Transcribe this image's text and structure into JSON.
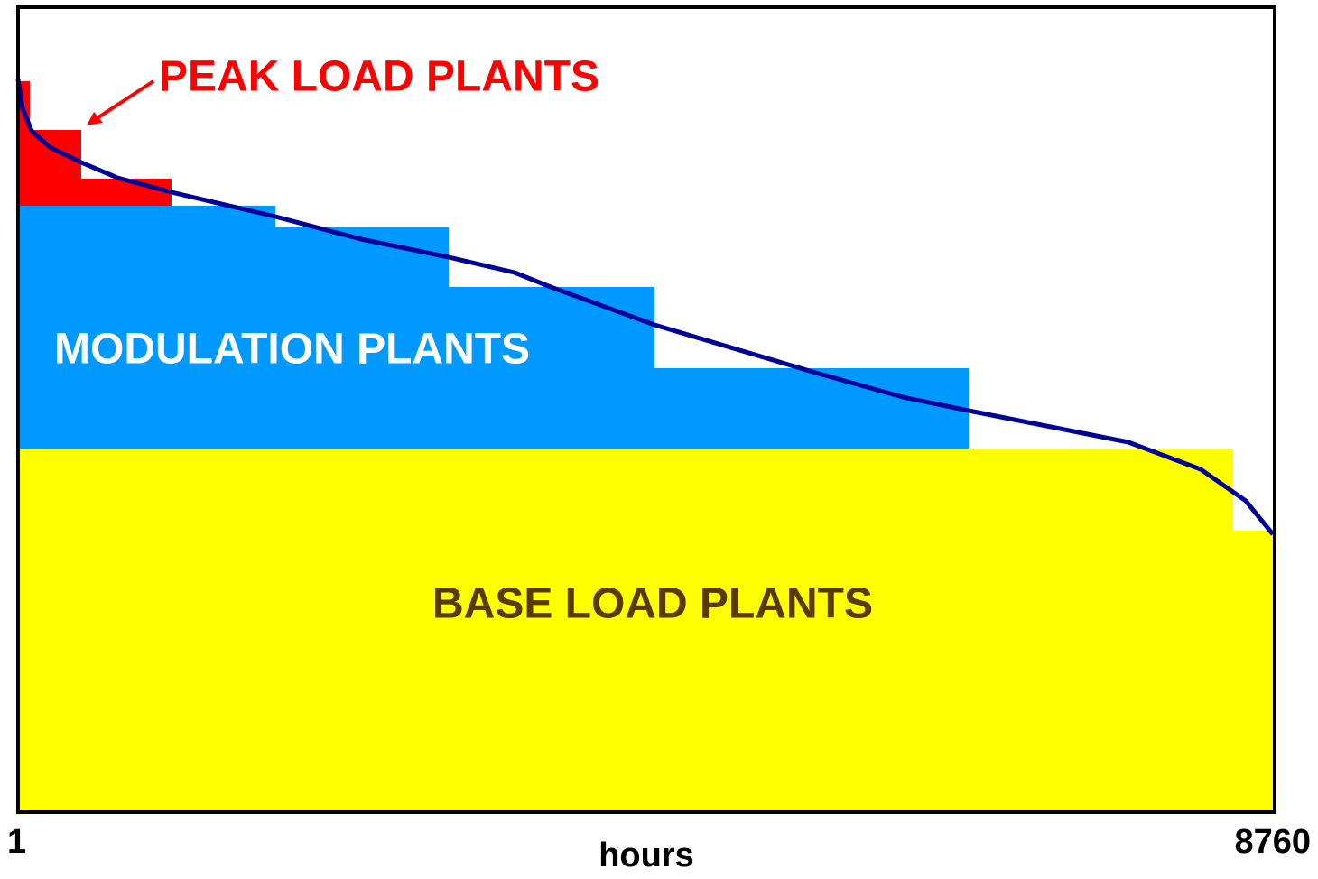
{
  "labels": {
    "peak": "PEAK LOAD PLANTS",
    "modulation": "MODULATION PLANTS",
    "base": "BASE LOAD PLANTS"
  },
  "axis": {
    "x_start": "1",
    "x_end": "8760",
    "x_label": "hours"
  }
}
